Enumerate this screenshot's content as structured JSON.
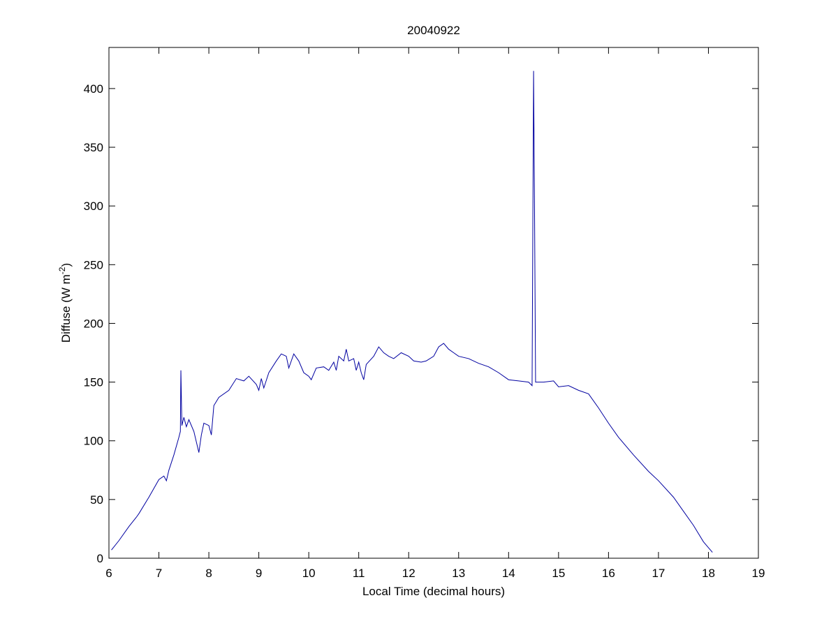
{
  "chart_data": {
    "type": "line",
    "title": "20040922",
    "xlabel": "Local Time (decimal hours)",
    "ylabel_parts": [
      "Diffuse (W m",
      "-2",
      ")"
    ],
    "xlim": [
      6,
      19
    ],
    "xticks": [
      6,
      7,
      8,
      9,
      10,
      11,
      12,
      13,
      14,
      15,
      16,
      17,
      18,
      19
    ],
    "ylim": [
      0,
      435
    ],
    "yticks": [
      0,
      50,
      100,
      150,
      200,
      250,
      300,
      350,
      400
    ],
    "series": [
      {
        "color": "#0000a0",
        "x": [
          6.05,
          6.2,
          6.4,
          6.55,
          6.6,
          6.8,
          7.0,
          7.1,
          7.15,
          7.2,
          7.3,
          7.4,
          7.43,
          7.44,
          7.46,
          7.5,
          7.55,
          7.6,
          7.7,
          7.8,
          7.85,
          7.9,
          8.0,
          8.05,
          8.1,
          8.2,
          8.4,
          8.55,
          8.7,
          8.8,
          8.95,
          9.0,
          9.05,
          9.1,
          9.2,
          9.35,
          9.45,
          9.55,
          9.6,
          9.7,
          9.8,
          9.9,
          10.0,
          10.05,
          10.15,
          10.3,
          10.4,
          10.5,
          10.55,
          10.6,
          10.7,
          10.75,
          10.8,
          10.9,
          10.95,
          11.0,
          11.05,
          11.1,
          11.15,
          11.3,
          11.4,
          11.5,
          11.6,
          11.7,
          11.85,
          12.0,
          12.1,
          12.25,
          12.35,
          12.5,
          12.6,
          12.7,
          12.8,
          12.9,
          13.0,
          13.2,
          13.4,
          13.6,
          13.8,
          14.0,
          14.2,
          14.4,
          14.47,
          14.5,
          14.52,
          14.54,
          14.7,
          14.9,
          15.0,
          15.2,
          15.4,
          15.6,
          15.8,
          16.0,
          16.2,
          16.5,
          16.8,
          17.0,
          17.3,
          17.5,
          17.7,
          17.9,
          18.08
        ],
        "values": [
          7,
          15,
          27,
          35,
          38,
          52,
          67,
          70,
          66,
          75,
          88,
          103,
          108,
          160,
          113,
          120,
          112,
          118,
          108,
          90,
          105,
          115,
          113,
          105,
          130,
          137,
          143,
          153,
          151,
          155,
          148,
          143,
          153,
          145,
          158,
          168,
          174,
          172,
          162,
          174,
          168,
          158,
          155,
          152,
          162,
          163,
          160,
          167,
          160,
          172,
          168,
          178,
          168,
          170,
          160,
          167,
          158,
          152,
          165,
          172,
          180,
          175,
          172,
          170,
          175,
          172,
          168,
          167,
          168,
          172,
          180,
          183,
          178,
          175,
          172,
          170,
          166,
          163,
          158,
          152,
          151,
          150,
          147,
          415,
          292,
          150,
          150,
          151,
          146,
          147,
          143,
          140,
          128,
          115,
          103,
          88,
          74,
          66,
          52,
          40,
          28,
          14,
          5
        ]
      }
    ]
  }
}
